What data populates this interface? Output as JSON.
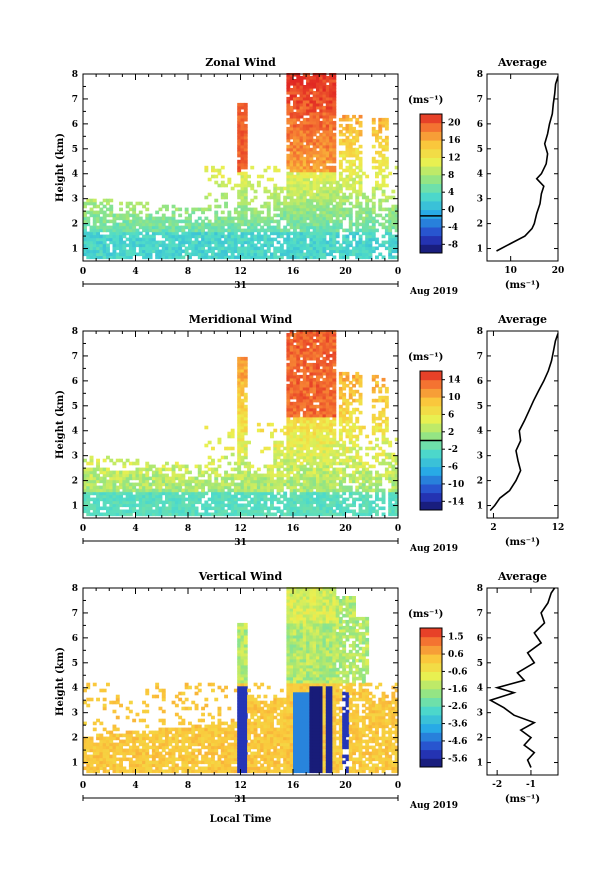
{
  "figure": {
    "date_label": "31",
    "month_label": "Aug 2019",
    "xlabel": "Local Time",
    "average_title": "Average",
    "ylabel": "Height (km)",
    "unit_label": "(ms⁻¹)"
  },
  "chart_data": [
    {
      "type": "heatmap",
      "title": "Zonal Wind",
      "xlabel": "",
      "ylabel": "Height (km)",
      "xlim": [
        0,
        24
      ],
      "ylim": [
        0.5,
        8
      ],
      "xticks": [
        "0",
        "4",
        "8",
        "12",
        "16",
        "20",
        "0"
      ],
      "yticks": [
        "1",
        "2",
        "3",
        "4",
        "5",
        "6",
        "7",
        "8"
      ],
      "colorbar": {
        "label": "(ms⁻¹)",
        "range": [
          -8,
          22
        ],
        "ticks": [
          "20",
          "16",
          "12",
          "8",
          "4",
          "0",
          "-4",
          "-8"
        ],
        "zero_line": 0
      },
      "average_profile": {
        "title": "Average",
        "xlabel": "(ms⁻¹)",
        "xlim": [
          5,
          20
        ],
        "xticks": [
          "10",
          "20"
        ],
        "heights": [
          0.9,
          1.2,
          1.5,
          1.8,
          2.0,
          2.4,
          2.8,
          3.2,
          3.5,
          3.8,
          4.0,
          4.4,
          4.8,
          5.2,
          5.6,
          6.0,
          6.4,
          6.8,
          7.2,
          7.6,
          7.9
        ],
        "values": [
          7,
          10,
          13,
          14.5,
          15,
          15.5,
          16.2,
          16.5,
          17,
          15.5,
          16.5,
          17.5,
          17.8,
          17.2,
          17.8,
          18.2,
          18.8,
          19,
          19.3,
          19.5,
          20
        ]
      }
    },
    {
      "type": "heatmap",
      "title": "Meridional Wind",
      "xlabel": "",
      "ylabel": "Height (km)",
      "xlim": [
        0,
        24
      ],
      "ylim": [
        0.5,
        8
      ],
      "xticks": [
        "0",
        "4",
        "8",
        "12",
        "16",
        "20",
        "0"
      ],
      "yticks": [
        "1",
        "2",
        "3",
        "4",
        "5",
        "6",
        "7",
        "8"
      ],
      "colorbar": {
        "label": "(ms⁻¹)",
        "range": [
          -16,
          16
        ],
        "ticks": [
          "14",
          "10",
          "6",
          "2",
          "-2",
          "-6",
          "-10",
          "-14"
        ],
        "zero_line": 0
      },
      "average_profile": {
        "title": "Average",
        "xlabel": "(ms⁻¹)",
        "xlim": [
          1,
          12
        ],
        "xticks": [
          "2",
          "12"
        ],
        "heights": [
          0.8,
          1.0,
          1.3,
          1.6,
          2.0,
          2.4,
          2.8,
          3.2,
          3.6,
          4.0,
          4.4,
          4.8,
          5.2,
          5.6,
          6.0,
          6.4,
          6.8,
          7.2,
          7.6,
          7.9
        ],
        "values": [
          1.5,
          2.2,
          3,
          4.5,
          5.5,
          6.2,
          5.8,
          5.5,
          6.2,
          6,
          6.8,
          7.5,
          8.2,
          9,
          9.8,
          10.5,
          11,
          11.3,
          11.6,
          12
        ]
      }
    },
    {
      "type": "heatmap",
      "title": "Vertical Wind",
      "xlabel": "Local Time",
      "ylabel": "Height (km)",
      "xlim": [
        0,
        24
      ],
      "ylim": [
        0.5,
        8
      ],
      "xticks": [
        "0",
        "4",
        "8",
        "12",
        "16",
        "20",
        "0"
      ],
      "yticks": [
        "1",
        "2",
        "3",
        "4",
        "5",
        "6",
        "7",
        "8"
      ],
      "colorbar": {
        "label": "(ms⁻¹)",
        "range": [
          -6,
          2
        ],
        "ticks": [
          "1.5",
          "0.6",
          "-0.6",
          "-1.6",
          "-2.6",
          "-3.6",
          "-4.6",
          "-5.6"
        ]
      },
      "average_profile": {
        "title": "Average",
        "xlabel": "(ms⁻¹)",
        "xlim": [
          -2.3,
          -0.2
        ],
        "xticks": [
          "-2",
          "-1"
        ],
        "heights": [
          0.8,
          1.1,
          1.4,
          1.7,
          2.0,
          2.3,
          2.6,
          2.9,
          3.2,
          3.5,
          3.8,
          4.0,
          4.3,
          4.6,
          5.0,
          5.4,
          5.8,
          6.2,
          6.6,
          7.0,
          7.4,
          7.8,
          8.0
        ],
        "values": [
          -1.0,
          -1.1,
          -0.9,
          -1.2,
          -1.0,
          -1.3,
          -0.9,
          -1.5,
          -1.8,
          -2.2,
          -1.5,
          -2.0,
          -1.2,
          -1.4,
          -0.9,
          -1.1,
          -0.7,
          -0.9,
          -0.6,
          -0.7,
          -0.5,
          -0.4,
          -0.3
        ]
      }
    }
  ]
}
